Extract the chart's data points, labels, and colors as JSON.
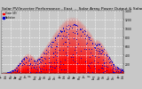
{
  "title": "Solar PV/Inverter Performance - East  -  Solar Array Power Output & Solar Radiation",
  "bg_color": "#c8c8c8",
  "plot_bg_color": "#c8c8c8",
  "bar_color": "#ff0000",
  "dot_color": "#0000cc",
  "grid_color": "#ffffff",
  "y_max": 1400,
  "y_ticks": [
    200,
    400,
    600,
    800,
    1000,
    1200,
    1400
  ],
  "legend_labels": [
    "Power (W)",
    "Radiation"
  ],
  "title_fontsize": 3.2
}
